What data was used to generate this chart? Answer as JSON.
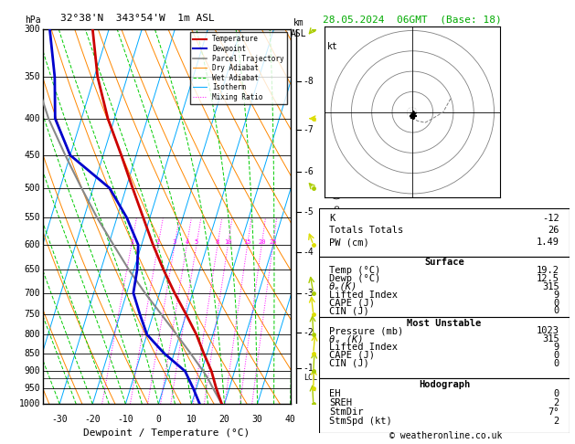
{
  "title_left": "32°38'N  343°54'W  1m ASL",
  "title_right": "28.05.2024  06GMT  (Base: 18)",
  "xlabel": "Dewpoint / Temperature (°C)",
  "ylabel_left": "hPa",
  "ylabel_right_top": "km",
  "ylabel_right_bot": "ASL",
  "ylabel_mid": "Mixing Ratio (g/kg)",
  "pressure_levels": [
    300,
    350,
    400,
    450,
    500,
    550,
    600,
    650,
    700,
    750,
    800,
    850,
    900,
    950,
    1000
  ],
  "temp_range": [
    -35,
    40
  ],
  "temp_ticks": [
    -30,
    -20,
    -10,
    0,
    10,
    20,
    30,
    40
  ],
  "skew_deg": 35.0,
  "isotherm_color": "#00aaff",
  "dry_adiabat_color": "#ff8800",
  "wet_adiabat_color": "#00cc00",
  "mixing_ratio_color": "#ff00ff",
  "mixing_ratio_values": [
    1,
    2,
    3,
    4,
    5,
    8,
    10,
    15,
    20,
    25
  ],
  "km_ticks": [
    1,
    2,
    3,
    4,
    5,
    6,
    7,
    8
  ],
  "km_pressures": [
    890,
    795,
    700,
    615,
    540,
    475,
    415,
    355
  ],
  "lcl_pressure": 920,
  "lcl_label": "LCL",
  "temp_profile_p": [
    1000,
    950,
    900,
    850,
    800,
    750,
    700,
    650,
    600,
    550,
    500,
    450,
    400,
    350,
    300
  ],
  "temp_profile_t": [
    19.2,
    16.0,
    13.0,
    9.0,
    5.0,
    0.0,
    -5.5,
    -11.0,
    -16.5,
    -22.0,
    -28.0,
    -34.5,
    -42.0,
    -49.0,
    -55.0
  ],
  "dewp_profile_p": [
    1000,
    950,
    900,
    850,
    800,
    750,
    700,
    650,
    600,
    550,
    500,
    450,
    400,
    350,
    300
  ],
  "dewp_profile_t": [
    12.5,
    9.0,
    5.0,
    -3.0,
    -10.0,
    -14.0,
    -18.0,
    -19.0,
    -21.0,
    -27.0,
    -35.0,
    -50.0,
    -58.0,
    -62.0,
    -68.0
  ],
  "parcel_profile_p": [
    1000,
    950,
    920,
    900,
    850,
    800,
    750,
    700,
    650,
    600,
    550,
    500,
    450,
    400,
    350,
    300
  ],
  "parcel_profile_t": [
    19.2,
    15.0,
    12.5,
    10.5,
    5.0,
    -1.0,
    -7.5,
    -14.5,
    -21.5,
    -28.5,
    -36.0,
    -43.5,
    -51.5,
    -60.0,
    -68.0,
    -75.0
  ],
  "temp_color": "#cc0000",
  "dewp_color": "#0000cc",
  "parcel_color": "#888888",
  "bg_color": "#ffffff",
  "info_K": "-12",
  "info_TT": "26",
  "info_PW": "1.49",
  "surf_temp": "19.2",
  "surf_dewp": "12.5",
  "surf_theta_e": "315",
  "surf_li": "9",
  "surf_cape": "0",
  "surf_cin": "0",
  "mu_pressure": "1023",
  "mu_theta_e": "315",
  "mu_li": "9",
  "mu_cape": "0",
  "mu_cin": "0",
  "hodo_EH": "0",
  "hodo_SREH": "2",
  "hodo_StmDir": "7°",
  "hodo_StmSpd": "2",
  "wind_p": [
    1000,
    950,
    900,
    850,
    800,
    750,
    700,
    600,
    500,
    400,
    300
  ],
  "wind_dir": [
    350,
    5,
    10,
    15,
    350,
    340,
    330,
    310,
    290,
    270,
    250
  ],
  "wind_spd": [
    2,
    2,
    3,
    3,
    3,
    4,
    5,
    8,
    10,
    15,
    20
  ],
  "wind_color_green": "#aacc00",
  "wind_color_yellow": "#dddd00",
  "title_right_color": "#00aa00"
}
